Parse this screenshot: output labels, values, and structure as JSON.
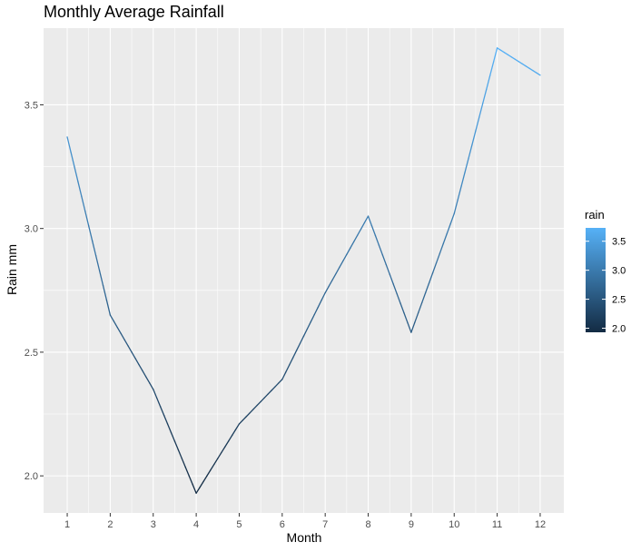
{
  "chart_data": {
    "type": "line",
    "title": "Monthly Average Rainfall",
    "xlabel": "Month",
    "ylabel": "Rain mm",
    "x": [
      1,
      2,
      3,
      4,
      5,
      6,
      7,
      8,
      9,
      10,
      11,
      12
    ],
    "series": [
      {
        "values": [
          3.37,
          2.65,
          2.35,
          1.93,
          2.21,
          2.39,
          2.74,
          3.05,
          2.58,
          3.06,
          3.73,
          3.62
        ]
      }
    ],
    "xlim": [
      0.45,
      12.55
    ],
    "ylim": [
      1.85,
      3.81
    ],
    "xticks": [
      1,
      2,
      3,
      4,
      5,
      6,
      7,
      8,
      9,
      10,
      11,
      12
    ],
    "yticks": [
      2.0,
      2.5,
      3.0,
      3.5
    ],
    "ytick_labels": [
      "2.0",
      "2.5",
      "3.0",
      "3.5"
    ],
    "grid": true,
    "legend": {
      "title": "rain",
      "placement": "right",
      "type": "colorbar",
      "range": [
        1.93,
        3.73
      ],
      "ticks": [
        2.0,
        2.5,
        3.0,
        3.5
      ],
      "tick_labels": [
        "2.0",
        "2.5",
        "3.0",
        "3.5"
      ]
    },
    "colors": {
      "low": "#132B43",
      "high": "#56B1F7",
      "panel_background": "#EBEBEB",
      "grid": "#FFFFFF"
    }
  }
}
